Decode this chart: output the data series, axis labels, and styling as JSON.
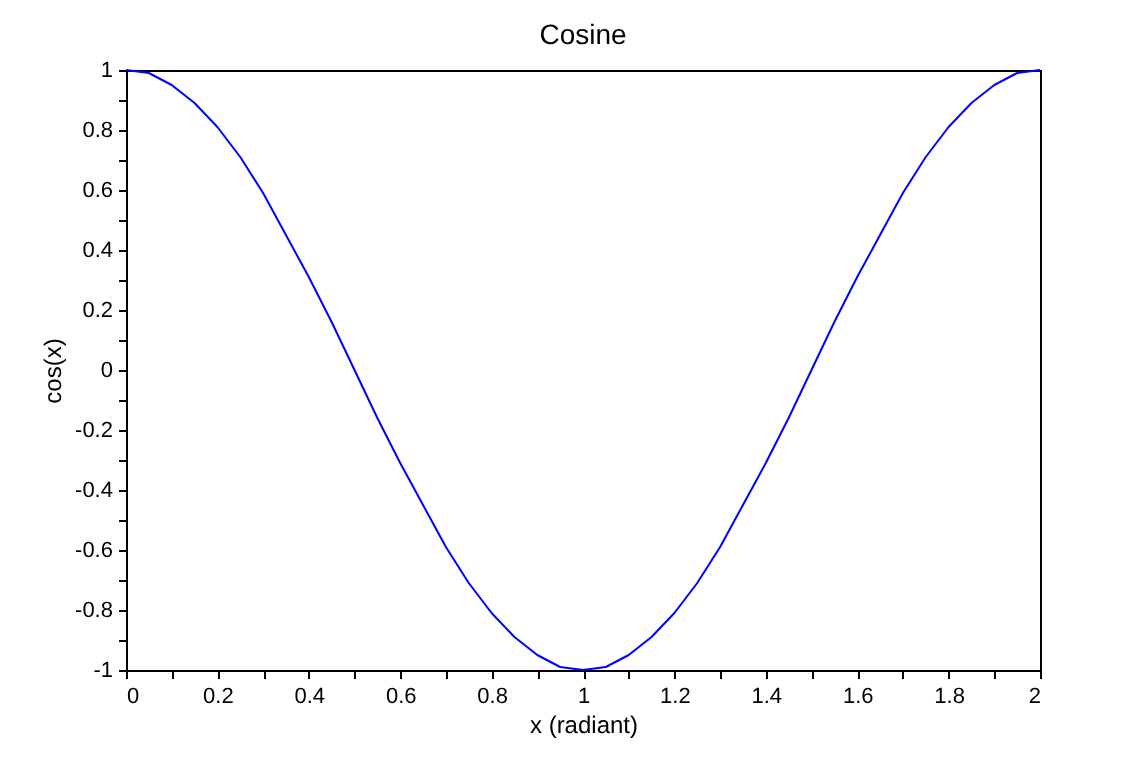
{
  "chart_data": {
    "type": "line",
    "title": "Cosine",
    "xlabel": "x (radiant)",
    "ylabel": "cos(x)",
    "x": [
      0,
      0.05,
      0.1,
      0.15,
      0.2,
      0.25,
      0.3,
      0.35,
      0.4,
      0.45,
      0.5,
      0.55,
      0.6,
      0.65,
      0.7,
      0.75,
      0.8,
      0.85,
      0.9,
      0.95,
      1,
      1.05,
      1.1,
      1.15,
      1.2,
      1.25,
      1.3,
      1.35,
      1.4,
      1.45,
      1.5,
      1.55,
      1.6,
      1.65,
      1.7,
      1.75,
      1.8,
      1.85,
      1.9,
      1.95,
      2
    ],
    "series": [
      {
        "color": "#0000ff",
        "values": [
          1,
          0.99,
          0.95,
          0.89,
          0.81,
          0.71,
          0.59,
          0.45,
          0.31,
          0.16,
          0,
          -0.16,
          -0.31,
          -0.45,
          -0.59,
          -0.71,
          -0.81,
          -0.89,
          -0.95,
          -0.99,
          -1,
          -0.99,
          -0.95,
          -0.89,
          -0.81,
          -0.71,
          -0.59,
          -0.45,
          -0.31,
          -0.16,
          0,
          0.16,
          0.31,
          0.45,
          0.59,
          0.71,
          0.81,
          0.89,
          0.95,
          0.99,
          1
        ]
      }
    ],
    "xlim": [
      0,
      2
    ],
    "ylim": [
      -1,
      1
    ],
    "xticks": [
      0,
      {
        "value": 0.1,
        "label": null
      },
      0.2,
      {
        "value": 0.3,
        "label": null
      },
      0.4,
      {
        "value": 0.5,
        "label": null
      },
      0.6,
      {
        "value": 0.7,
        "label": null
      },
      0.8,
      {
        "value": 0.9,
        "label": null
      },
      1,
      {
        "value": 1.1,
        "label": null
      },
      1.2,
      {
        "value": 1.3,
        "label": null
      },
      1.4,
      {
        "value": 1.5,
        "label": null
      },
      1.6,
      {
        "value": 1.7,
        "label": null
      },
      1.8,
      {
        "value": 1.9,
        "label": null
      },
      2
    ],
    "yticks": [
      -1,
      {
        "value": -0.9,
        "label": null
      },
      -0.8,
      {
        "value": -0.7,
        "label": null
      },
      -0.6,
      {
        "value": -0.5,
        "label": null
      },
      -0.4,
      {
        "value": -0.3,
        "label": null
      },
      -0.2,
      {
        "value": -0.1,
        "label": null
      },
      0,
      {
        "value": 0.1,
        "label": null
      },
      0.2,
      {
        "value": 0.3,
        "label": null
      },
      0.4,
      {
        "value": 0.5,
        "label": null
      },
      0.6,
      {
        "value": 0.7,
        "label": null
      },
      0.8,
      {
        "value": 0.9,
        "label": null
      },
      1
    ],
    "grid": false,
    "marker": "none",
    "line_style": "solid"
  }
}
